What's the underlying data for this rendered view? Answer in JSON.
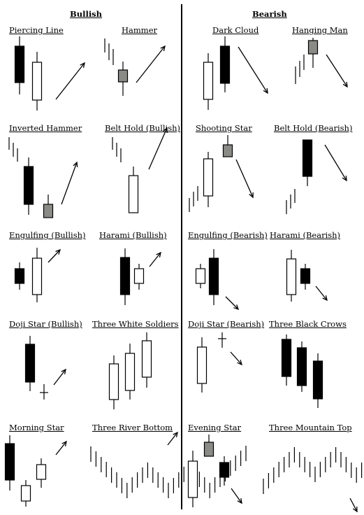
{
  "sections": {
    "bullish": "Bullish",
    "bearish": "Bearish"
  },
  "patterns": {
    "piercing_line": "Piercing Line",
    "hammer": "Hammer",
    "dark_cloud": "Dark Cloud",
    "hanging_man": "Hanging Man",
    "inverted_hammer": "Inverted Hammer",
    "belt_hold_bullish": "Belt Hold (Bullish)",
    "shooting_star": "Shooting Star",
    "belt_hold_bearish": "Belt Hold (Bearish)",
    "engulfing_bullish": "Engulfing (Bullish)",
    "harami_bullish": "Harami (Bullish)",
    "engulfing_bearish": "Engulfing (Bearish)",
    "harami_bearish": "Harami (Bearish)",
    "doji_star_bullish": "Doji Star (Bullish)",
    "three_white_soldiers": "Three White Soldiers",
    "doji_star_bearish": "Doji Star (Bearish)",
    "three_black_crows": "Three Black Crows",
    "morning_star": "Morning Star",
    "three_river_bottom": "Three River Bottom",
    "evening_star": "Evening Star",
    "three_mountain_top": "Three Mountain Top"
  },
  "colors": {
    "bullish_body": "#ffffff",
    "bearish_body": "#000000",
    "neutral_body": "#8a8a86",
    "line": "#000000"
  }
}
